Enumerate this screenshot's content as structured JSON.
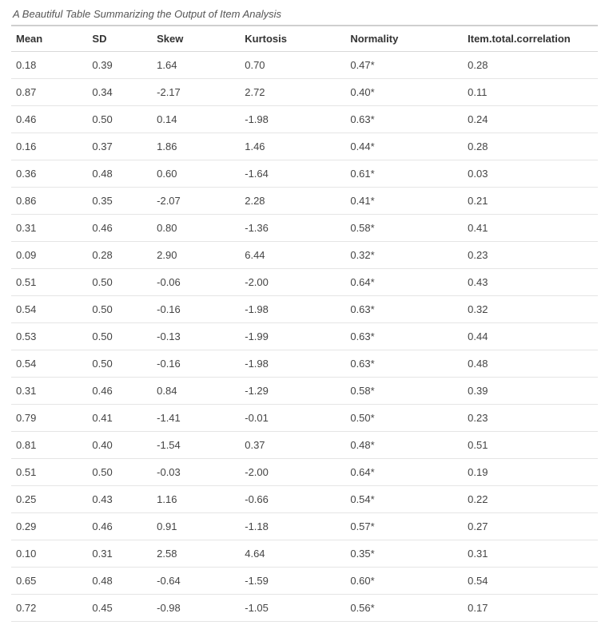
{
  "table": {
    "type": "table",
    "caption": "A Beautiful Table Summarizing the Output of Item Analysis",
    "columns": [
      "Mean",
      "SD",
      "Skew",
      "Kurtosis",
      "Normality",
      "Item.total.correlation"
    ],
    "column_widths_pct": [
      13,
      11,
      15,
      18,
      20,
      23
    ],
    "header_fontweight": 600,
    "header_fontsize_pt": 10,
    "cell_fontsize_pt": 10,
    "caption_fontsize_pt": 10,
    "caption_fontstyle": "italic",
    "text_color": "#333333",
    "cell_text_color": "#444444",
    "caption_color": "#555555",
    "background_color": "#ffffff",
    "border_top_color": "#cfcfcf",
    "header_border_color": "#d9d9d9",
    "row_border_color": "#e5e5e5",
    "rows": [
      [
        "0.18",
        "0.39",
        "1.64",
        "0.70",
        "0.47*",
        "0.28"
      ],
      [
        "0.87",
        "0.34",
        "-2.17",
        "2.72",
        "0.40*",
        "0.11"
      ],
      [
        "0.46",
        "0.50",
        "0.14",
        "-1.98",
        "0.63*",
        "0.24"
      ],
      [
        "0.16",
        "0.37",
        "1.86",
        "1.46",
        "0.44*",
        "0.28"
      ],
      [
        "0.36",
        "0.48",
        "0.60",
        "-1.64",
        "0.61*",
        "0.03"
      ],
      [
        "0.86",
        "0.35",
        "-2.07",
        "2.28",
        "0.41*",
        "0.21"
      ],
      [
        "0.31",
        "0.46",
        "0.80",
        "-1.36",
        "0.58*",
        "0.41"
      ],
      [
        "0.09",
        "0.28",
        "2.90",
        "6.44",
        "0.32*",
        "0.23"
      ],
      [
        "0.51",
        "0.50",
        "-0.06",
        "-2.00",
        "0.64*",
        "0.43"
      ],
      [
        "0.54",
        "0.50",
        "-0.16",
        "-1.98",
        "0.63*",
        "0.32"
      ],
      [
        "0.53",
        "0.50",
        "-0.13",
        "-1.99",
        "0.63*",
        "0.44"
      ],
      [
        "0.54",
        "0.50",
        "-0.16",
        "-1.98",
        "0.63*",
        "0.48"
      ],
      [
        "0.31",
        "0.46",
        "0.84",
        "-1.29",
        "0.58*",
        "0.39"
      ],
      [
        "0.79",
        "0.41",
        "-1.41",
        "-0.01",
        "0.50*",
        "0.23"
      ],
      [
        "0.81",
        "0.40",
        "-1.54",
        "0.37",
        "0.48*",
        "0.51"
      ],
      [
        "0.51",
        "0.50",
        "-0.03",
        "-2.00",
        "0.64*",
        "0.19"
      ],
      [
        "0.25",
        "0.43",
        "1.16",
        "-0.66",
        "0.54*",
        "0.22"
      ],
      [
        "0.29",
        "0.46",
        "0.91",
        "-1.18",
        "0.57*",
        "0.27"
      ],
      [
        "0.10",
        "0.31",
        "2.58",
        "4.64",
        "0.35*",
        "0.31"
      ],
      [
        "0.65",
        "0.48",
        "-0.64",
        "-1.59",
        "0.60*",
        "0.54"
      ],
      [
        "0.72",
        "0.45",
        "-0.98",
        "-1.05",
        "0.56*",
        "0.17"
      ]
    ]
  }
}
